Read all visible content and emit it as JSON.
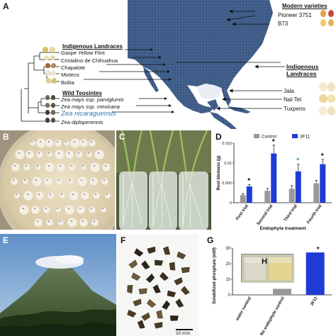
{
  "panels": {
    "a": "A",
    "b": "B",
    "c": "C",
    "d": "D",
    "e": "E",
    "f": "F",
    "g": "G",
    "h": "H"
  },
  "panel_a": {
    "modern_header": "Modern varieties",
    "modern": [
      "Pioneer 3751",
      "B73"
    ],
    "indigenous_header": "Indigenous Landraces",
    "indigenous_header_right_1": "Indigenous",
    "indigenous_header_right_2": "Landraces",
    "landraces": [
      "Gaspe Yellow Flint",
      "Cristalino de Chihuahua",
      "Chapalote",
      "Mixteco",
      "Bolita"
    ],
    "right_landraces": [
      "Jala",
      "Nal-Tel",
      "Tuxpeno"
    ],
    "teosinte_header": "Wild Teosintes",
    "teosintes": [
      "Zea mays ssp. parviglumis",
      "Zea mays ssp. mexicana",
      "Zea nicaraguensis",
      "Zea diploperennis"
    ],
    "highlight_color": "#2a7ab8"
  },
  "panel_f": {
    "scale": "10 mm"
  },
  "chart_data": [
    {
      "type": "bar",
      "panel": "D",
      "ylabel": "Root biomass (g)",
      "xlabel": "Endophyte treatment",
      "categories": [
        "First trial",
        "Second trial",
        "Third trial",
        "Fourth trial"
      ],
      "ylim": [
        0,
        0.015
      ],
      "yticks": [
        "0",
        "0.005",
        "0.01",
        "0.015"
      ],
      "series": [
        {
          "name": "Control",
          "color": "#999999",
          "values": [
            0.0019,
            0.003,
            0.0035,
            0.0049
          ],
          "errors": [
            0.0004,
            0.0006,
            0.0008,
            0.0007
          ]
        },
        {
          "name": "3F11",
          "color": "#1f3bd6",
          "values": [
            0.0041,
            0.0124,
            0.0079,
            0.0097
          ],
          "errors": [
            0.0005,
            0.0021,
            0.0018,
            0.0012
          ]
        }
      ],
      "significance": [
        {
          "label": "*",
          "color": "#000000"
        },
        {
          "label": "*",
          "color": "#000000"
        },
        {
          "label": "*",
          "color": "#2aa84a"
        },
        {
          "label": "*",
          "color": "#000000"
        }
      ]
    },
    {
      "type": "bar",
      "panel": "G",
      "ylabel": "Solubilized phosphate (mM)",
      "categories": [
        "water control",
        "No endophyte control",
        "3F11"
      ],
      "ylim": [
        0,
        30
      ],
      "yticks": [
        "0",
        "10",
        "20",
        "30"
      ],
      "values": [
        0,
        3.9,
        27.2
      ],
      "colors": [
        "#999999",
        "#999999",
        "#1f3bd6"
      ],
      "significance": [
        "",
        "",
        "*"
      ]
    }
  ]
}
